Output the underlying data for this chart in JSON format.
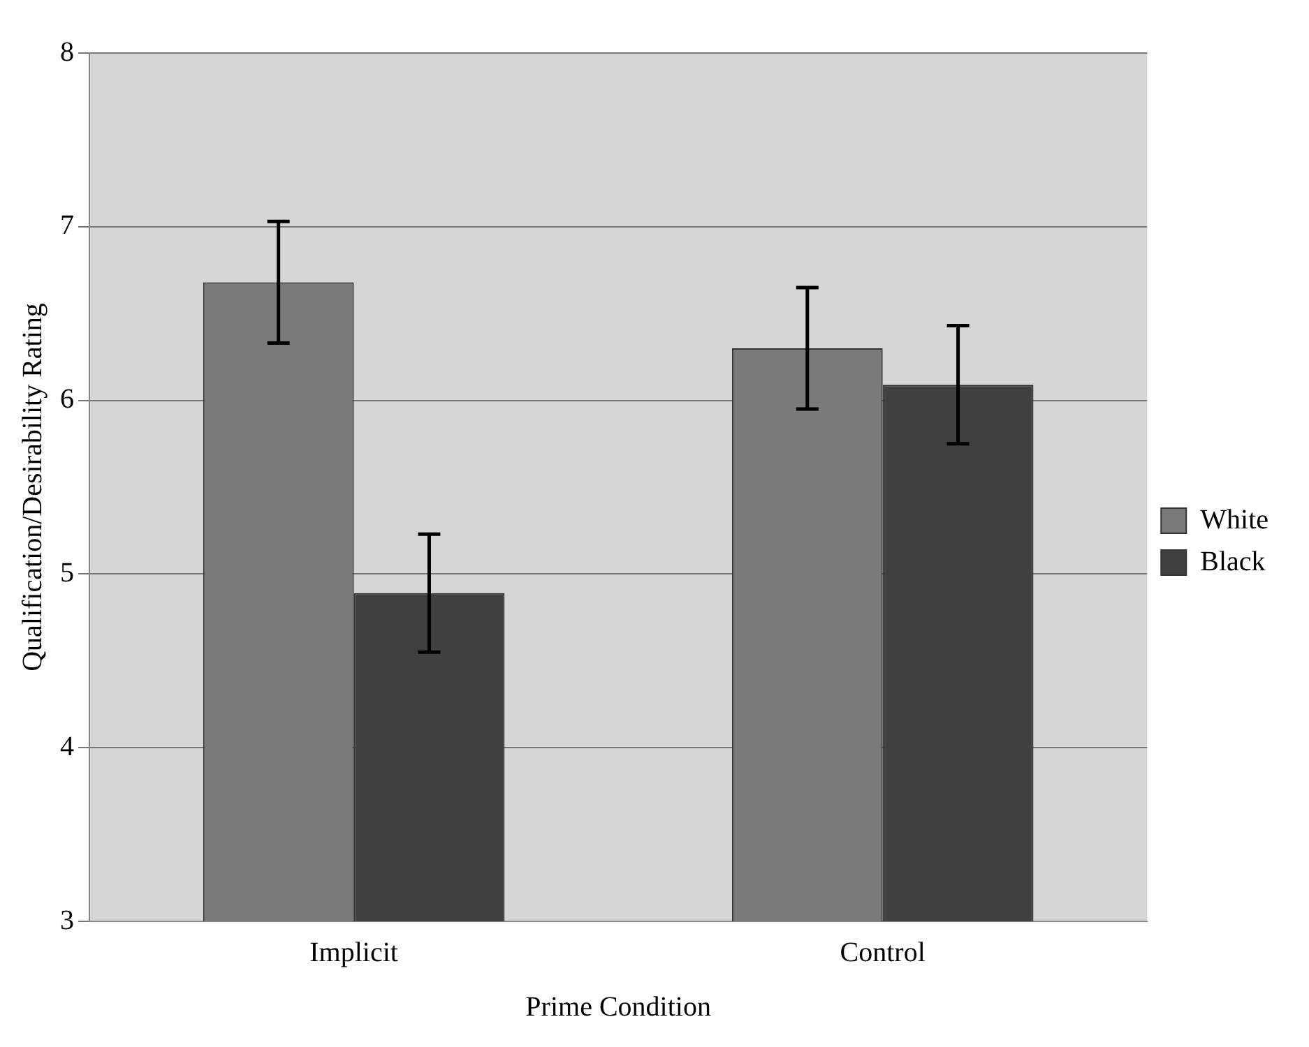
{
  "chart_data": {
    "type": "bar",
    "xlabel": "Prime Condition",
    "ylabel": "Qualification/Desirability Rating",
    "categories": [
      "Implicit",
      "Control"
    ],
    "series": [
      {
        "name": "White",
        "color": "#7a7a7a",
        "values": [
          6.68,
          6.3
        ],
        "errors": [
          0.35,
          0.35
        ]
      },
      {
        "name": "Black",
        "color": "#404040",
        "values": [
          4.89,
          6.09
        ],
        "errors": [
          0.34,
          0.34
        ]
      }
    ],
    "ylim": [
      3,
      8
    ],
    "yticks": [
      3,
      4,
      5,
      6,
      7,
      8
    ],
    "grid": "y",
    "legend": "right"
  }
}
